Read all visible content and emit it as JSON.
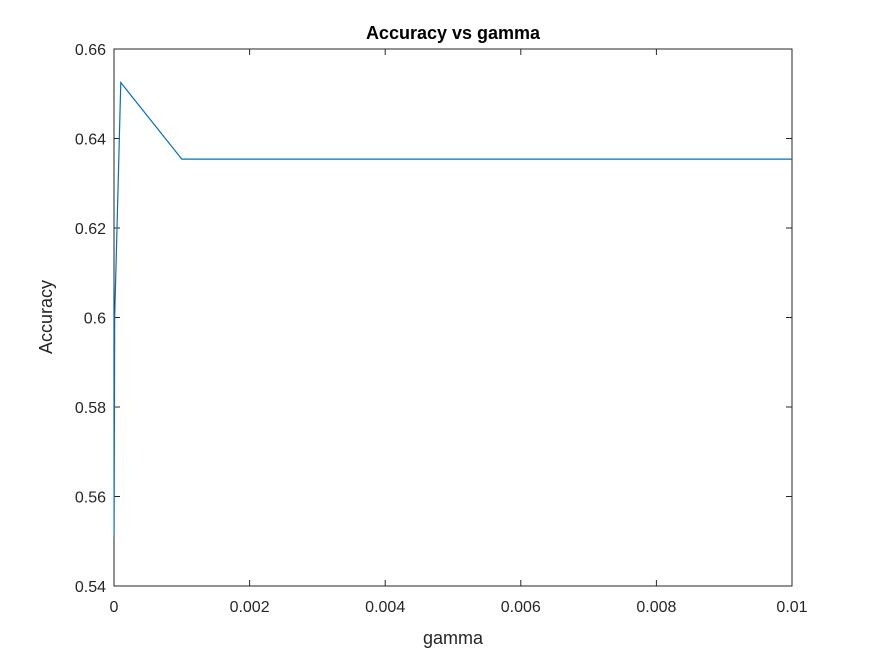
{
  "chart_data": {
    "type": "line",
    "title": "Accuracy vs gamma",
    "xlabel": "gamma",
    "ylabel": "Accuracy",
    "xlim": [
      0,
      0.01
    ],
    "ylim": [
      0.54,
      0.66
    ],
    "x_ticks": [
      "0",
      "0.002",
      "0.004",
      "0.006",
      "0.008",
      "0.01"
    ],
    "x_tick_values": [
      0,
      0.002,
      0.004,
      0.006,
      0.008,
      0.01
    ],
    "y_ticks": [
      "0.54",
      "0.56",
      "0.58",
      "0.6",
      "0.62",
      "0.64",
      "0.66"
    ],
    "y_tick_values": [
      0.54,
      0.56,
      0.58,
      0.6,
      0.62,
      0.64,
      0.66
    ],
    "grid": false,
    "series": [
      {
        "color": "#0072bd",
        "x": [
          1e-06,
          1e-05,
          0.0001,
          0.001,
          0.01
        ],
        "y": [
          0.551,
          0.6,
          0.6525,
          0.6354,
          0.6354
        ]
      }
    ]
  }
}
